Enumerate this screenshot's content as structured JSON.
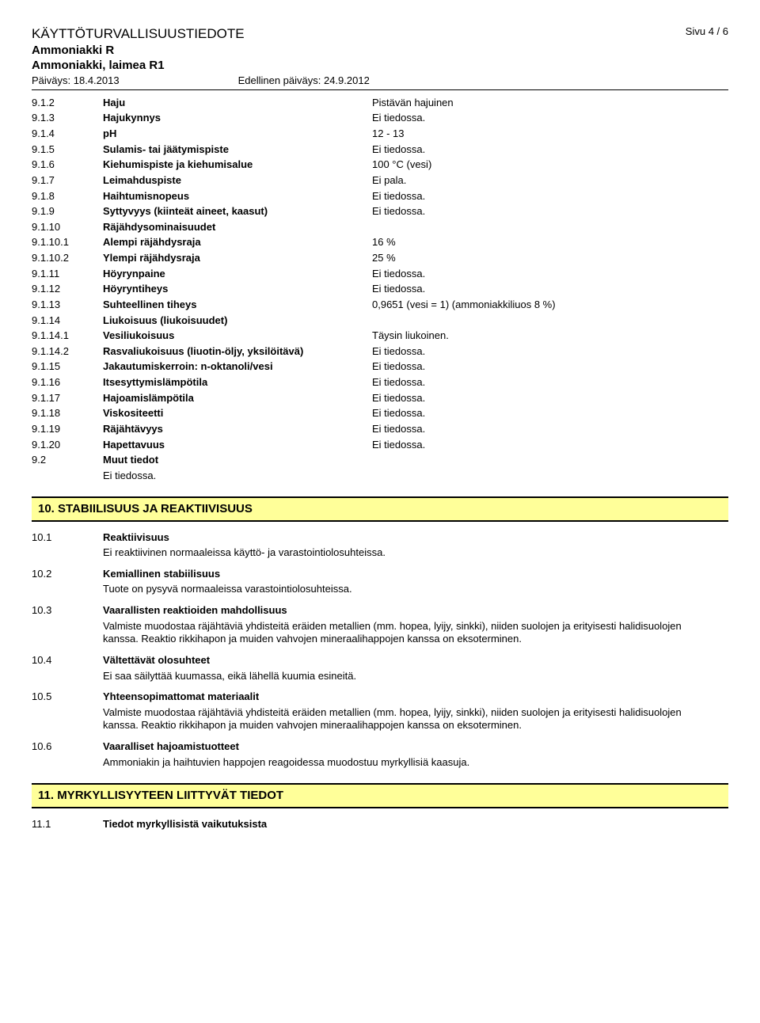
{
  "header": {
    "doc_title": "KÄYTTÖTURVALLISUUSTIEDOTE",
    "page": "Sivu 4 / 6",
    "sub1": "Ammoniakki R",
    "sub2": "Ammoniakki, laimea R1",
    "date": "Päiväys: 18.4.2013",
    "prev_date": "Edellinen päiväys: 24.9.2012"
  },
  "rows": [
    {
      "n": "9.1.2",
      "l": "Haju",
      "v": "Pistävän hajuinen"
    },
    {
      "n": "9.1.3",
      "l": "Hajukynnys",
      "v": "Ei tiedossa."
    },
    {
      "n": "9.1.4",
      "l": "pH",
      "v": "12 - 13"
    },
    {
      "n": "9.1.5",
      "l": "Sulamis- tai jäätymispiste",
      "v": "Ei tiedossa."
    },
    {
      "n": "9.1.6",
      "l": "Kiehumispiste ja kiehumisalue",
      "v": "100 °C (vesi)"
    },
    {
      "n": "9.1.7",
      "l": "Leimahduspiste",
      "v": "Ei pala."
    },
    {
      "n": "9.1.8",
      "l": "Haihtumisnopeus",
      "v": "Ei tiedossa."
    },
    {
      "n": "9.1.9",
      "l": "Syttyvyys (kiinteät aineet, kaasut)",
      "v": "Ei tiedossa."
    },
    {
      "n": "9.1.10",
      "l": "Räjähdysominaisuudet",
      "v": ""
    },
    {
      "n": "9.1.10.1",
      "l": "Alempi räjähdysraja",
      "v": "16 %"
    },
    {
      "n": "9.1.10.2",
      "l": "Ylempi räjähdysraja",
      "v": "25 %"
    },
    {
      "n": "9.1.11",
      "l": "Höyrynpaine",
      "v": "Ei tiedossa."
    },
    {
      "n": "9.1.12",
      "l": "Höyryntiheys",
      "v": "Ei tiedossa."
    },
    {
      "n": "9.1.13",
      "l": "Suhteellinen tiheys",
      "v": "0,9651 (vesi = 1) (ammoniakkiliuos 8 %)"
    },
    {
      "n": "9.1.14",
      "l": "Liukoisuus (liukoisuudet)",
      "v": ""
    },
    {
      "n": "9.1.14.1",
      "l": "Vesiliukoisuus",
      "v": "Täysin liukoinen."
    },
    {
      "n": "9.1.14.2",
      "l": "Rasvaliukoisuus (liuotin-öljy, yksilöitävä)",
      "v": "Ei tiedossa."
    },
    {
      "n": "9.1.15",
      "l": "Jakautumiskerroin: n-oktanoli/vesi",
      "v": "Ei tiedossa."
    },
    {
      "n": "9.1.16",
      "l": "Itsesyttymislämpötila",
      "v": "Ei tiedossa."
    },
    {
      "n": "9.1.17",
      "l": "Hajoamislämpötila",
      "v": "Ei tiedossa."
    },
    {
      "n": "9.1.18",
      "l": "Viskositeetti",
      "v": "Ei tiedossa."
    },
    {
      "n": "9.1.19",
      "l": "Räjähtävyys",
      "v": "Ei tiedossa."
    },
    {
      "n": "9.1.20",
      "l": "Hapettavuus",
      "v": "Ei tiedossa."
    }
  ],
  "r92": {
    "n": "9.2",
    "l": "Muut tiedot",
    "v": "Ei tiedossa."
  },
  "sec10_title": "10. STABIILISUUS JA REAKTIIVISUUS",
  "sec10": [
    {
      "n": "10.1",
      "l": "Reaktiivisuus",
      "p": "Ei reaktiivinen normaaleissa käyttö- ja varastointiolosuhteissa."
    },
    {
      "n": "10.2",
      "l": "Kemiallinen stabiilisuus",
      "p": "Tuote on pysyvä normaaleissa varastointiolosuhteissa."
    },
    {
      "n": "10.3",
      "l": "Vaarallisten reaktioiden mahdollisuus",
      "p": "Valmiste muodostaa räjähtäviä yhdisteitä eräiden metallien (mm. hopea, lyijy, sinkki), niiden suolojen ja erityisesti halidisuolojen kanssa. Reaktio rikkihapon ja muiden vahvojen mineraalihappojen kanssa on eksoterminen."
    },
    {
      "n": "10.4",
      "l": "Vältettävät olosuhteet",
      "p": "Ei saa säilyttää kuumassa, eikä lähellä kuumia esineitä."
    },
    {
      "n": "10.5",
      "l": "Yhteensopimattomat materiaalit",
      "p": "Valmiste muodostaa räjähtäviä yhdisteitä eräiden metallien (mm. hopea, lyijy, sinkki), niiden suolojen ja erityisesti halidisuolojen kanssa. Reaktio rikkihapon ja muiden vahvojen mineraalihappojen kanssa on eksoterminen."
    },
    {
      "n": "10.6",
      "l": "Vaaralliset hajoamistuotteet",
      "p": "Ammoniakin ja haihtuvien happojen reagoidessa muodostuu myrkyllisiä kaasuja."
    }
  ],
  "sec11_title": "11. MYRKYLLISYYTEEN LIITTYVÄT TIEDOT",
  "r111": {
    "n": "11.1",
    "l": "Tiedot myrkyllisistä vaikutuksista"
  }
}
